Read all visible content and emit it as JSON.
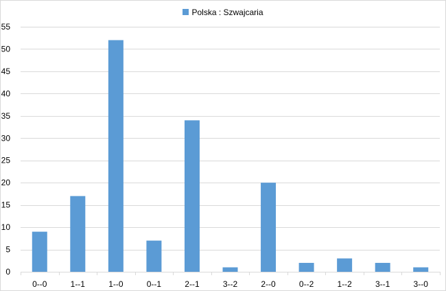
{
  "chart_data": {
    "type": "bar",
    "categories": [
      "0--0",
      "1--1",
      "1--0",
      "0--1",
      "2--1",
      "3--2",
      "2--0",
      "0--2",
      "1--2",
      "3--1",
      "3--0"
    ],
    "series": [
      {
        "name": "Polska : Szwajcaria",
        "values": [
          9,
          17,
          52,
          7,
          34,
          1,
          20,
          2,
          3,
          2,
          1
        ],
        "color": "#5B9BD5"
      }
    ],
    "ylim": [
      0,
      55
    ],
    "yticks": [
      0,
      5,
      10,
      15,
      20,
      25,
      30,
      35,
      40,
      45,
      50,
      55
    ],
    "grid": true,
    "legend_position": "top"
  }
}
